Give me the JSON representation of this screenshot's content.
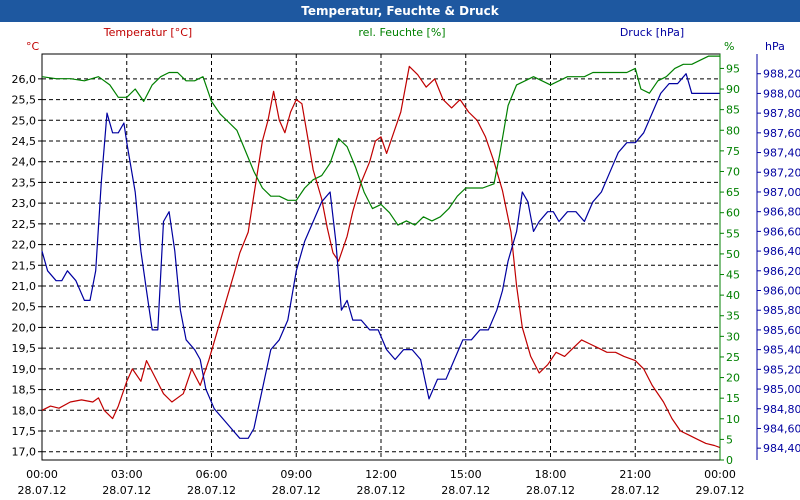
{
  "window": {
    "title": "Temperatur, Feuchte & Druck"
  },
  "colors": {
    "temperature": "#c00000",
    "humidity": "#008000",
    "pressure": "#0000a0",
    "grid": "#000000",
    "axis_text": "#000000"
  },
  "chart_data": {
    "type": "line",
    "title": "Temperatur, Feuchte & Druck",
    "x_ticks": [
      {
        "time": "00:00",
        "date": "28.07.12"
      },
      {
        "time": "03:00",
        "date": "28.07.12"
      },
      {
        "time": "06:00",
        "date": "28.07.12"
      },
      {
        "time": "09:00",
        "date": "28.07.12"
      },
      {
        "time": "12:00",
        "date": "28.07.12"
      },
      {
        "time": "15:00",
        "date": "28.07.12"
      },
      {
        "time": "18:00",
        "date": "28.07.12"
      },
      {
        "time": "21:00",
        "date": "28.07.12"
      },
      {
        "time": "00:00",
        "date": "29.07.12"
      }
    ],
    "xlim": [
      0,
      24
    ],
    "axes": {
      "temperature": {
        "title": "Temperatur [°C]",
        "unit": "°C",
        "ylim": [
          16.8,
          26.6
        ],
        "ticks": [
          "17,0",
          "17,5",
          "18,0",
          "18,5",
          "19,0",
          "19,5",
          "20,0",
          "20,5",
          "21,0",
          "21,5",
          "22,0",
          "22,5",
          "23,0",
          "23,5",
          "24,0",
          "24,5",
          "25,0",
          "25,5",
          "26,0"
        ],
        "tick_values": [
          17.0,
          17.5,
          18.0,
          18.5,
          19.0,
          19.5,
          20.0,
          20.5,
          21.0,
          21.5,
          22.0,
          22.5,
          23.0,
          23.5,
          24.0,
          24.5,
          25.0,
          25.5,
          26.0
        ]
      },
      "humidity": {
        "title": "rel. Feuchte [%]",
        "unit": "%",
        "ylim": [
          0,
          98.5
        ],
        "ticks": [
          "0",
          "5",
          "10",
          "15",
          "20",
          "25",
          "30",
          "35",
          "40",
          "45",
          "50",
          "55",
          "60",
          "65",
          "70",
          "75",
          "80",
          "85",
          "90",
          "95"
        ],
        "tick_values": [
          0,
          5,
          10,
          15,
          20,
          25,
          30,
          35,
          40,
          45,
          50,
          55,
          60,
          65,
          70,
          75,
          80,
          85,
          90,
          95
        ]
      },
      "pressure": {
        "title": "Druck [hPa]",
        "unit": "hPa",
        "ylim": [
          984.28,
          988.4
        ],
        "ticks": [
          "984,40",
          "984,60",
          "984,80",
          "985,00",
          "985,20",
          "985,40",
          "985,60",
          "985,80",
          "986,00",
          "986,20",
          "986,40",
          "986,60",
          "986,80",
          "987,00",
          "987,20",
          "987,40",
          "987,60",
          "987,80",
          "988,00",
          "988,20"
        ],
        "tick_values": [
          984.4,
          984.6,
          984.8,
          985.0,
          985.2,
          985.4,
          985.6,
          985.8,
          986.0,
          986.2,
          986.4,
          986.6,
          986.8,
          987.0,
          987.2,
          987.4,
          987.6,
          987.8,
          988.0,
          988.2
        ]
      }
    },
    "series": [
      {
        "name": "Temperatur",
        "axis": "temperature",
        "points": [
          [
            0,
            18
          ],
          [
            0.3,
            18.1
          ],
          [
            0.6,
            18.05
          ],
          [
            1.0,
            18.2
          ],
          [
            1.4,
            18.25
          ],
          [
            1.8,
            18.2
          ],
          [
            2.0,
            18.3
          ],
          [
            2.2,
            18.0
          ],
          [
            2.5,
            17.8
          ],
          [
            2.7,
            18.1
          ],
          [
            3.0,
            18.7
          ],
          [
            3.2,
            19.0
          ],
          [
            3.5,
            18.7
          ],
          [
            3.7,
            19.2
          ],
          [
            4.0,
            18.8
          ],
          [
            4.3,
            18.4
          ],
          [
            4.6,
            18.2
          ],
          [
            5.0,
            18.4
          ],
          [
            5.3,
            19.0
          ],
          [
            5.6,
            18.6
          ],
          [
            5.9,
            19.2
          ],
          [
            6.2,
            19.9
          ],
          [
            6.5,
            20.6
          ],
          [
            6.8,
            21.3
          ],
          [
            7.0,
            21.8
          ],
          [
            7.3,
            22.3
          ],
          [
            7.5,
            23.2
          ],
          [
            7.8,
            24.5
          ],
          [
            8.0,
            25.0
          ],
          [
            8.2,
            25.7
          ],
          [
            8.4,
            25.0
          ],
          [
            8.6,
            24.7
          ],
          [
            8.8,
            25.2
          ],
          [
            9.0,
            25.5
          ],
          [
            9.2,
            25.4
          ],
          [
            9.4,
            24.6
          ],
          [
            9.6,
            23.8
          ],
          [
            9.9,
            23.1
          ],
          [
            10.1,
            22.4
          ],
          [
            10.3,
            21.8
          ],
          [
            10.5,
            21.6
          ],
          [
            10.8,
            22.2
          ],
          [
            11.0,
            22.8
          ],
          [
            11.3,
            23.5
          ],
          [
            11.6,
            24.0
          ],
          [
            11.8,
            24.5
          ],
          [
            12.0,
            24.6
          ],
          [
            12.2,
            24.2
          ],
          [
            12.5,
            24.8
          ],
          [
            12.7,
            25.2
          ],
          [
            13.0,
            26.3
          ],
          [
            13.3,
            26.1
          ],
          [
            13.6,
            25.8
          ],
          [
            13.9,
            26.0
          ],
          [
            14.2,
            25.5
          ],
          [
            14.5,
            25.3
          ],
          [
            14.8,
            25.5
          ],
          [
            15.1,
            25.2
          ],
          [
            15.4,
            25.0
          ],
          [
            15.7,
            24.6
          ],
          [
            16.0,
            24.0
          ],
          [
            16.3,
            23.3
          ],
          [
            16.6,
            22.3
          ],
          [
            16.8,
            21.0
          ],
          [
            17.0,
            20.0
          ],
          [
            17.3,
            19.3
          ],
          [
            17.6,
            18.9
          ],
          [
            17.9,
            19.1
          ],
          [
            18.2,
            19.4
          ],
          [
            18.5,
            19.3
          ],
          [
            18.8,
            19.5
          ],
          [
            19.1,
            19.7
          ],
          [
            19.4,
            19.6
          ],
          [
            19.7,
            19.5
          ],
          [
            20.0,
            19.4
          ],
          [
            20.3,
            19.4
          ],
          [
            20.6,
            19.3
          ],
          [
            21.0,
            19.2
          ],
          [
            21.3,
            19.0
          ],
          [
            21.6,
            18.6
          ],
          [
            22.0,
            18.2
          ],
          [
            22.3,
            17.8
          ],
          [
            22.6,
            17.5
          ],
          [
            22.9,
            17.4
          ],
          [
            23.2,
            17.3
          ],
          [
            23.5,
            17.2
          ],
          [
            23.8,
            17.15
          ],
          [
            24,
            17.1
          ]
        ]
      },
      {
        "name": "rel. Feuchte",
        "axis": "humidity",
        "points": [
          [
            0,
            93
          ],
          [
            0.5,
            92.5
          ],
          [
            1.0,
            92.5
          ],
          [
            1.5,
            92
          ],
          [
            2.0,
            93
          ],
          [
            2.4,
            91
          ],
          [
            2.7,
            88
          ],
          [
            3.0,
            88
          ],
          [
            3.3,
            90
          ],
          [
            3.6,
            87
          ],
          [
            3.9,
            91
          ],
          [
            4.2,
            93
          ],
          [
            4.5,
            94
          ],
          [
            4.8,
            94
          ],
          [
            5.1,
            92
          ],
          [
            5.4,
            92
          ],
          [
            5.7,
            93
          ],
          [
            6.0,
            87
          ],
          [
            6.3,
            84
          ],
          [
            6.6,
            82
          ],
          [
            6.9,
            80
          ],
          [
            7.2,
            75
          ],
          [
            7.5,
            70
          ],
          [
            7.8,
            66
          ],
          [
            8.1,
            64
          ],
          [
            8.4,
            64
          ],
          [
            8.7,
            63
          ],
          [
            9.0,
            63
          ],
          [
            9.3,
            66
          ],
          [
            9.6,
            68
          ],
          [
            9.9,
            69
          ],
          [
            10.2,
            72
          ],
          [
            10.5,
            78
          ],
          [
            10.8,
            76
          ],
          [
            11.1,
            71
          ],
          [
            11.4,
            65
          ],
          [
            11.7,
            61
          ],
          [
            12.0,
            62
          ],
          [
            12.3,
            60
          ],
          [
            12.6,
            57
          ],
          [
            12.9,
            58
          ],
          [
            13.2,
            57
          ],
          [
            13.5,
            59
          ],
          [
            13.8,
            58
          ],
          [
            14.1,
            59
          ],
          [
            14.4,
            61
          ],
          [
            14.7,
            64
          ],
          [
            15.0,
            66
          ],
          [
            15.3,
            66
          ],
          [
            15.6,
            66
          ],
          [
            16.0,
            67
          ],
          [
            16.2,
            74
          ],
          [
            16.5,
            86
          ],
          [
            16.8,
            91
          ],
          [
            17.1,
            92
          ],
          [
            17.4,
            93
          ],
          [
            17.7,
            92
          ],
          [
            18.0,
            91
          ],
          [
            18.3,
            92
          ],
          [
            18.6,
            93
          ],
          [
            18.9,
            93
          ],
          [
            19.2,
            93
          ],
          [
            19.5,
            94
          ],
          [
            19.8,
            94
          ],
          [
            20.1,
            94
          ],
          [
            20.4,
            94
          ],
          [
            20.7,
            94
          ],
          [
            21.0,
            95
          ],
          [
            21.2,
            90
          ],
          [
            21.5,
            89
          ],
          [
            21.8,
            92
          ],
          [
            22.1,
            93
          ],
          [
            22.4,
            95
          ],
          [
            22.7,
            96
          ],
          [
            23.0,
            96
          ],
          [
            23.3,
            97
          ],
          [
            23.6,
            98
          ],
          [
            24,
            98
          ]
        ]
      },
      {
        "name": "Druck",
        "axis": "pressure",
        "points": [
          [
            0,
            986.4
          ],
          [
            0.2,
            986.2
          ],
          [
            0.5,
            986.1
          ],
          [
            0.7,
            986.1
          ],
          [
            0.9,
            986.2
          ],
          [
            1.2,
            986.1
          ],
          [
            1.5,
            985.9
          ],
          [
            1.7,
            985.9
          ],
          [
            1.9,
            986.2
          ],
          [
            2.1,
            987.1
          ],
          [
            2.3,
            987.8
          ],
          [
            2.5,
            987.6
          ],
          [
            2.7,
            987.6
          ],
          [
            2.9,
            987.7
          ],
          [
            3.0,
            987.5
          ],
          [
            3.3,
            987.0
          ],
          [
            3.5,
            986.4
          ],
          [
            3.7,
            986.0
          ],
          [
            3.9,
            985.6
          ],
          [
            4.1,
            985.6
          ],
          [
            4.3,
            986.7
          ],
          [
            4.5,
            986.8
          ],
          [
            4.7,
            986.4
          ],
          [
            4.9,
            985.8
          ],
          [
            5.1,
            985.5
          ],
          [
            5.4,
            985.4
          ],
          [
            5.6,
            985.3
          ],
          [
            5.8,
            985.0
          ],
          [
            6.1,
            984.8
          ],
          [
            6.4,
            984.7
          ],
          [
            6.7,
            984.6
          ],
          [
            7.0,
            984.5
          ],
          [
            7.3,
            984.5
          ],
          [
            7.5,
            984.6
          ],
          [
            7.8,
            985.0
          ],
          [
            8.1,
            985.4
          ],
          [
            8.4,
            985.5
          ],
          [
            8.7,
            985.7
          ],
          [
            9.0,
            986.2
          ],
          [
            9.3,
            986.5
          ],
          [
            9.6,
            986.7
          ],
          [
            9.9,
            986.9
          ],
          [
            10.2,
            987.0
          ],
          [
            10.4,
            986.5
          ],
          [
            10.6,
            985.8
          ],
          [
            10.8,
            985.9
          ],
          [
            11.0,
            985.7
          ],
          [
            11.3,
            985.7
          ],
          [
            11.6,
            985.6
          ],
          [
            11.9,
            985.6
          ],
          [
            12.2,
            985.4
          ],
          [
            12.5,
            985.3
          ],
          [
            12.8,
            985.4
          ],
          [
            13.1,
            985.4
          ],
          [
            13.4,
            985.3
          ],
          [
            13.7,
            984.9
          ],
          [
            14.0,
            985.1
          ],
          [
            14.3,
            985.1
          ],
          [
            14.6,
            985.3
          ],
          [
            14.9,
            985.5
          ],
          [
            15.2,
            985.5
          ],
          [
            15.5,
            985.6
          ],
          [
            15.8,
            985.6
          ],
          [
            16.1,
            985.8
          ],
          [
            16.3,
            986.0
          ],
          [
            16.5,
            986.3
          ],
          [
            16.8,
            986.6
          ],
          [
            17.0,
            987.0
          ],
          [
            17.2,
            986.9
          ],
          [
            17.4,
            986.6
          ],
          [
            17.6,
            986.7
          ],
          [
            17.9,
            986.8
          ],
          [
            18.1,
            986.8
          ],
          [
            18.3,
            986.7
          ],
          [
            18.6,
            986.8
          ],
          [
            18.9,
            986.8
          ],
          [
            19.2,
            986.7
          ],
          [
            19.5,
            986.9
          ],
          [
            19.8,
            987.0
          ],
          [
            20.1,
            987.2
          ],
          [
            20.4,
            987.4
          ],
          [
            20.7,
            987.5
          ],
          [
            21.0,
            987.5
          ],
          [
            21.3,
            987.6
          ],
          [
            21.6,
            987.8
          ],
          [
            21.9,
            988.0
          ],
          [
            22.2,
            988.1
          ],
          [
            22.5,
            988.1
          ],
          [
            22.8,
            988.2
          ],
          [
            23.0,
            988.0
          ],
          [
            23.3,
            988.0
          ],
          [
            23.6,
            988.0
          ],
          [
            24,
            988.0
          ]
        ]
      }
    ]
  }
}
